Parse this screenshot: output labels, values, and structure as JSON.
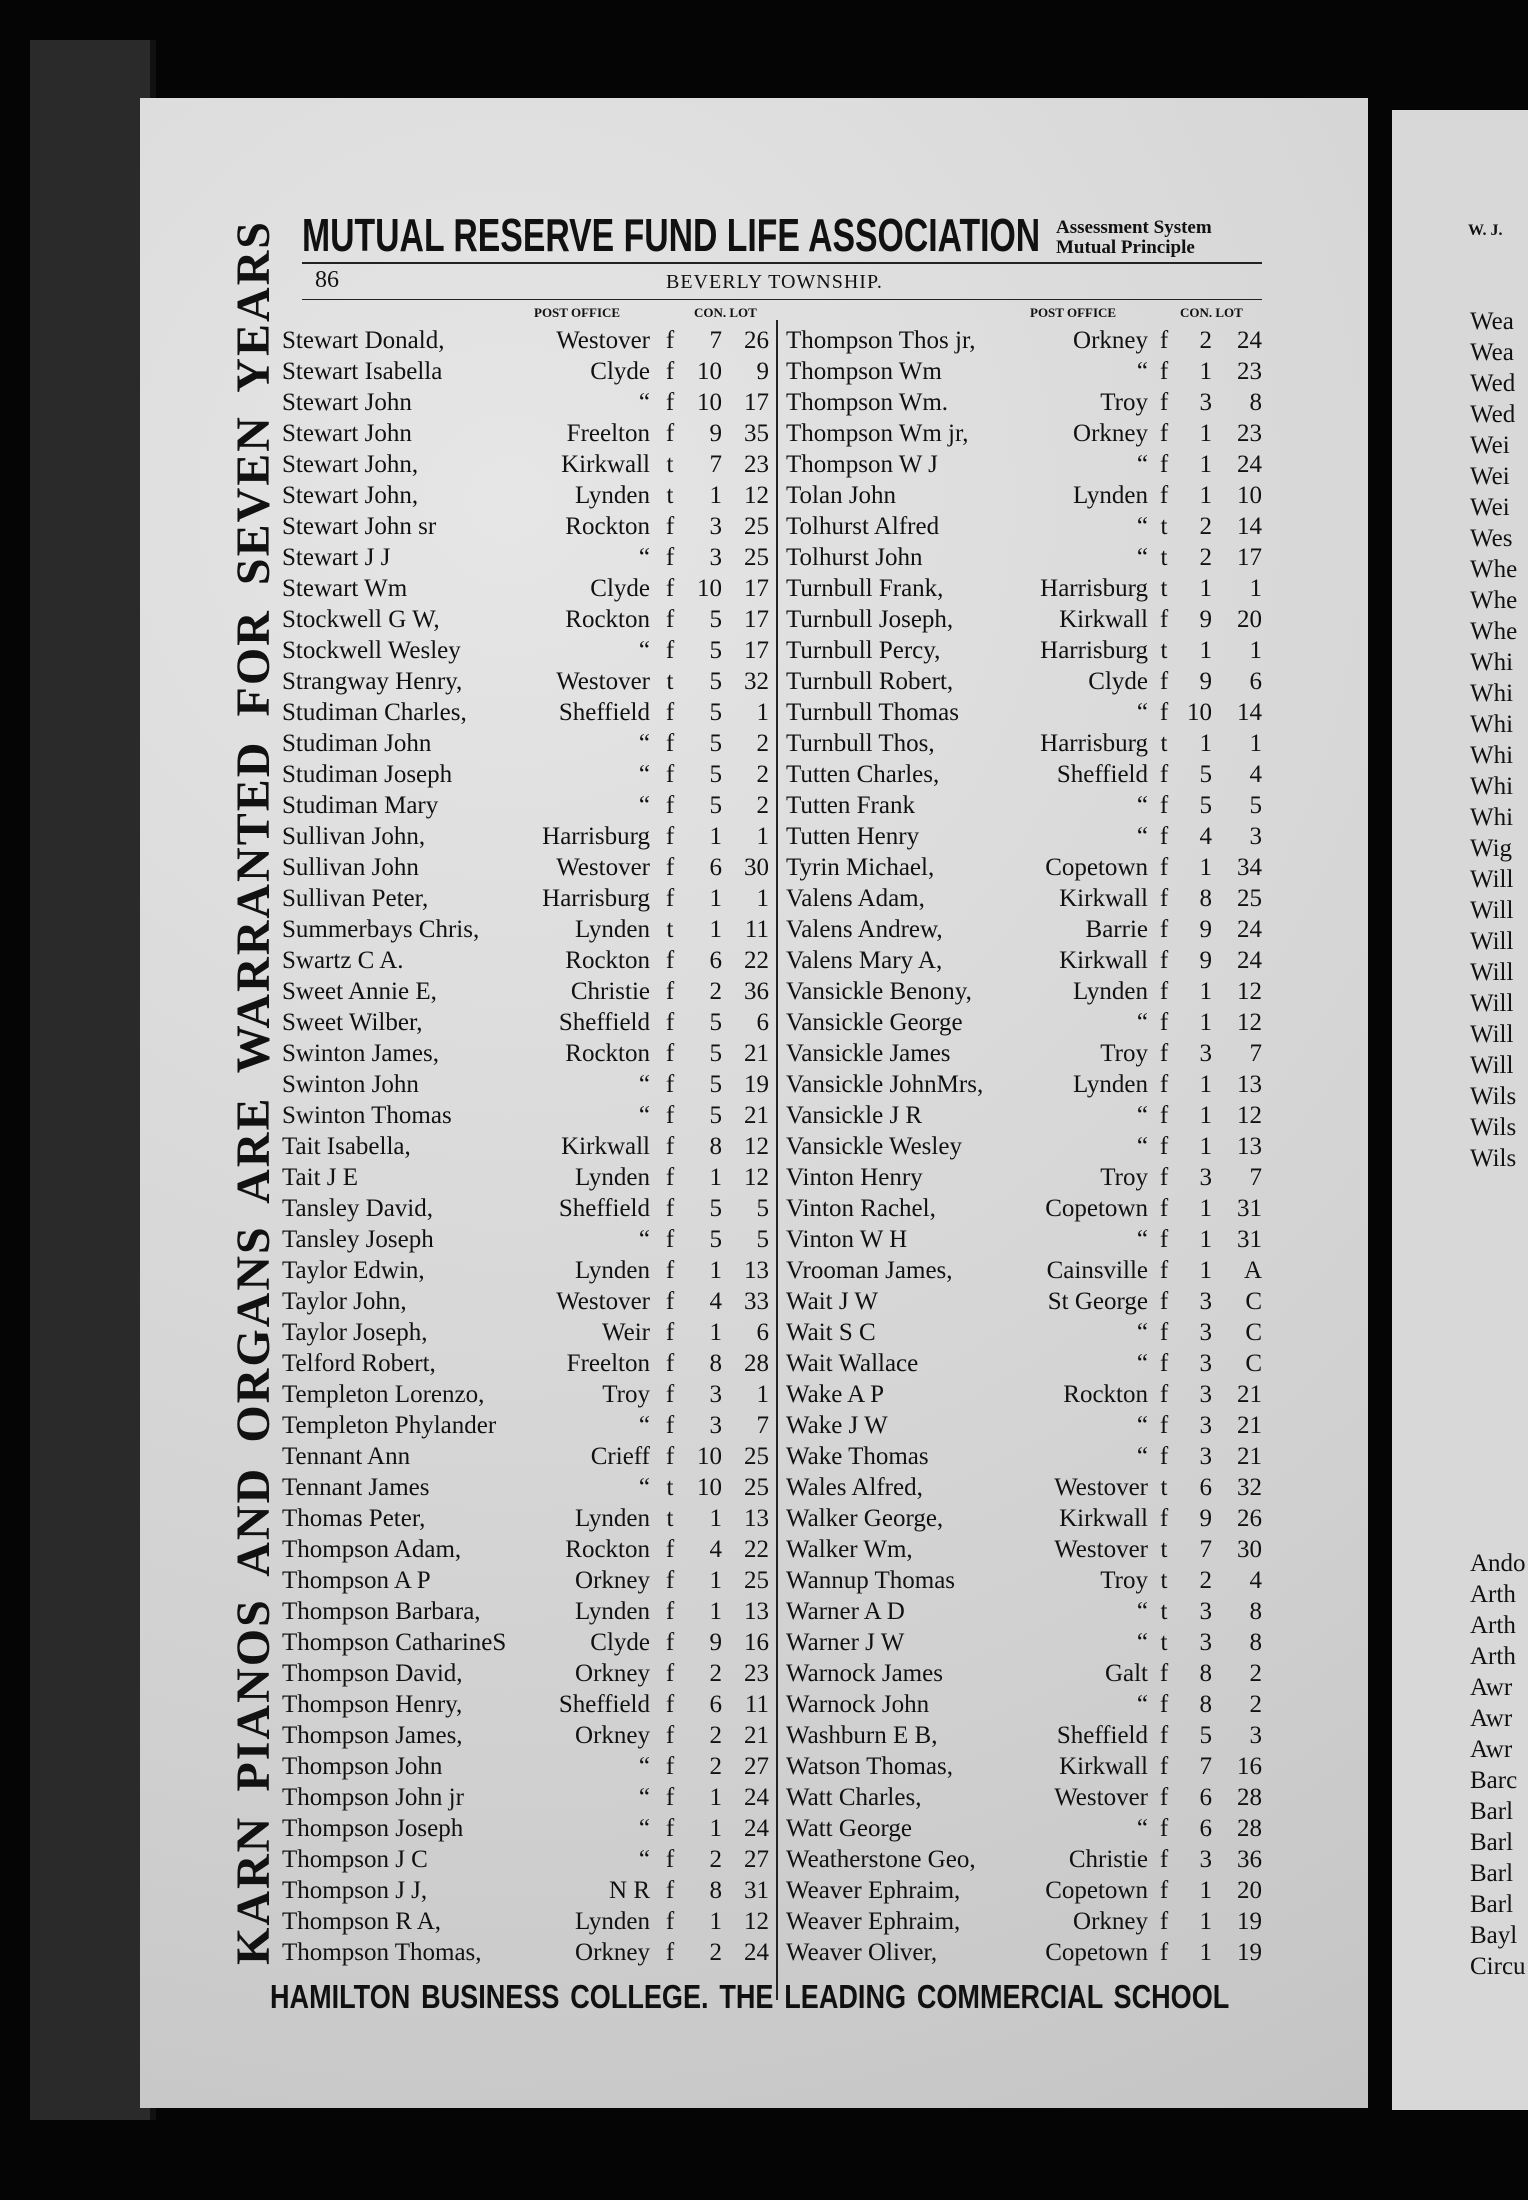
{
  "side_advertisement": "KARN PIANOS AND ORGANS ARE WARRANTED FOR SEVEN YEARS",
  "header": {
    "title": "MUTUAL RESERVE FUND LIFE ASSOCIATION",
    "subtitle_line1": "Assessment System",
    "subtitle_line2": "Mutual Principle",
    "page_number": "86",
    "section": "BEVERLY TOWNSHIP."
  },
  "column_headers": {
    "post_office": "POST OFFICE",
    "con_lot": "CON. LOT"
  },
  "left_column": [
    {
      "name": "Stewart Donald,",
      "po": "Westover",
      "s": "f",
      "con": "7",
      "lot": "26"
    },
    {
      "name": "Stewart Isabella",
      "po": "Clyde",
      "s": "f",
      "con": "10",
      "lot": "9"
    },
    {
      "name": "Stewart John",
      "po": "“",
      "s": "f",
      "con": "10",
      "lot": "17"
    },
    {
      "name": "Stewart John",
      "po": "Freelton",
      "s": "f",
      "con": "9",
      "lot": "35"
    },
    {
      "name": "Stewart John,",
      "po": "Kirkwall",
      "s": "t",
      "con": "7",
      "lot": "23"
    },
    {
      "name": "Stewart John,",
      "po": "Lynden",
      "s": "t",
      "con": "1",
      "lot": "12"
    },
    {
      "name": "Stewart John sr",
      "po": "Rockton",
      "s": "f",
      "con": "3",
      "lot": "25"
    },
    {
      "name": "Stewart J J",
      "po": "“",
      "s": "f",
      "con": "3",
      "lot": "25"
    },
    {
      "name": "Stewart Wm",
      "po": "Clyde",
      "s": "f",
      "con": "10",
      "lot": "17"
    },
    {
      "name": "Stockwell G W,",
      "po": "Rockton",
      "s": "f",
      "con": "5",
      "lot": "17"
    },
    {
      "name": "Stockwell Wesley",
      "po": "“",
      "s": "f",
      "con": "5",
      "lot": "17"
    },
    {
      "name": "Strangway Henry,",
      "po": "Westover",
      "s": "t",
      "con": "5",
      "lot": "32"
    },
    {
      "name": "Studiman Charles,",
      "po": "Sheffield",
      "s": "f",
      "con": "5",
      "lot": "1"
    },
    {
      "name": "Studiman John",
      "po": "“",
      "s": "f",
      "con": "5",
      "lot": "2"
    },
    {
      "name": "Studiman Joseph",
      "po": "“",
      "s": "f",
      "con": "5",
      "lot": "2"
    },
    {
      "name": "Studiman Mary",
      "po": "“",
      "s": "f",
      "con": "5",
      "lot": "2"
    },
    {
      "name": "Sullivan John,",
      "po": "Harrisburg",
      "s": "f",
      "con": "1",
      "lot": "1"
    },
    {
      "name": "Sullivan John",
      "po": "Westover",
      "s": "f",
      "con": "6",
      "lot": "30"
    },
    {
      "name": "Sullivan Peter,",
      "po": "Harrisburg",
      "s": "f",
      "con": "1",
      "lot": "1"
    },
    {
      "name": "Summerbays Chris,",
      "po": "Lynden",
      "s": "t",
      "con": "1",
      "lot": "11"
    },
    {
      "name": "Swartz C A.",
      "po": "Rockton",
      "s": "f",
      "con": "6",
      "lot": "22"
    },
    {
      "name": "Sweet Annie E,",
      "po": "Christie",
      "s": "f",
      "con": "2",
      "lot": "36"
    },
    {
      "name": "Sweet Wilber,",
      "po": "Sheffield",
      "s": "f",
      "con": "5",
      "lot": "6"
    },
    {
      "name": "Swinton James,",
      "po": "Rockton",
      "s": "f",
      "con": "5",
      "lot": "21"
    },
    {
      "name": "Swinton John",
      "po": "“",
      "s": "f",
      "con": "5",
      "lot": "19"
    },
    {
      "name": "Swinton Thomas",
      "po": "“",
      "s": "f",
      "con": "5",
      "lot": "21"
    },
    {
      "name": "Tait Isabella,",
      "po": "Kirkwall",
      "s": "f",
      "con": "8",
      "lot": "12"
    },
    {
      "name": "Tait J E",
      "po": "Lynden",
      "s": "f",
      "con": "1",
      "lot": "12"
    },
    {
      "name": "Tansley David,",
      "po": "Sheffield",
      "s": "f",
      "con": "5",
      "lot": "5"
    },
    {
      "name": "Tansley Joseph",
      "po": "“",
      "s": "f",
      "con": "5",
      "lot": "5"
    },
    {
      "name": "Taylor Edwin,",
      "po": "Lynden",
      "s": "f",
      "con": "1",
      "lot": "13"
    },
    {
      "name": "Taylor John,",
      "po": "Westover",
      "s": "f",
      "con": "4",
      "lot": "33"
    },
    {
      "name": "Taylor Joseph,",
      "po": "Weir",
      "s": "f",
      "con": "1",
      "lot": "6"
    },
    {
      "name": "Telford Robert,",
      "po": "Freelton",
      "s": "f",
      "con": "8",
      "lot": "28"
    },
    {
      "name": "Templeton Lorenzo,",
      "po": "Troy",
      "s": "f",
      "con": "3",
      "lot": "1"
    },
    {
      "name": "Templeton Phylander",
      "po": "“",
      "s": "f",
      "con": "3",
      "lot": "7"
    },
    {
      "name": "Tennant Ann",
      "po": "Crieff",
      "s": "f",
      "con": "10",
      "lot": "25"
    },
    {
      "name": "Tennant James",
      "po": "“",
      "s": "t",
      "con": "10",
      "lot": "25"
    },
    {
      "name": "Thomas Peter,",
      "po": "Lynden",
      "s": "t",
      "con": "1",
      "lot": "13"
    },
    {
      "name": "Thompson Adam,",
      "po": "Rockton",
      "s": "f",
      "con": "4",
      "lot": "22"
    },
    {
      "name": "Thompson A P",
      "po": "Orkney",
      "s": "f",
      "con": "1",
      "lot": "25"
    },
    {
      "name": "Thompson Barbara,",
      "po": "Lynden",
      "s": "f",
      "con": "1",
      "lot": "13"
    },
    {
      "name": "Thompson CatharineS",
      "po": "Clyde",
      "s": "f",
      "con": "9",
      "lot": "16"
    },
    {
      "name": "Thompson David,",
      "po": "Orkney",
      "s": "f",
      "con": "2",
      "lot": "23"
    },
    {
      "name": "Thompson Henry,",
      "po": "Sheffield",
      "s": "f",
      "con": "6",
      "lot": "11"
    },
    {
      "name": "Thompson James,",
      "po": "Orkney",
      "s": "f",
      "con": "2",
      "lot": "21"
    },
    {
      "name": "Thompson John",
      "po": "“",
      "s": "f",
      "con": "2",
      "lot": "27"
    },
    {
      "name": "Thompson John jr",
      "po": "“",
      "s": "f",
      "con": "1",
      "lot": "24"
    },
    {
      "name": "Thompson Joseph",
      "po": "“",
      "s": "f",
      "con": "1",
      "lot": "24"
    },
    {
      "name": "Thompson J C",
      "po": "“",
      "s": "f",
      "con": "2",
      "lot": "27"
    },
    {
      "name": "Thompson J J,",
      "po": "N R",
      "s": "f",
      "con": "8",
      "lot": "31"
    },
    {
      "name": "Thompson R A,",
      "po": "Lynden",
      "s": "f",
      "con": "1",
      "lot": "12"
    },
    {
      "name": "Thompson Thomas,",
      "po": "Orkney",
      "s": "f",
      "con": "2",
      "lot": "24"
    }
  ],
  "right_column": [
    {
      "name": "Thompson Thos jr,",
      "po": "Orkney",
      "s": "f",
      "con": "2",
      "lot": "24"
    },
    {
      "name": "Thompson Wm",
      "po": "“",
      "s": "f",
      "con": "1",
      "lot": "23"
    },
    {
      "name": "Thompson Wm.",
      "po": "Troy",
      "s": "f",
      "con": "3",
      "lot": "8"
    },
    {
      "name": "Thompson Wm jr,",
      "po": "Orkney",
      "s": "f",
      "con": "1",
      "lot": "23"
    },
    {
      "name": "Thompson W J",
      "po": "“",
      "s": "f",
      "con": "1",
      "lot": "24"
    },
    {
      "name": "Tolan John",
      "po": "Lynden",
      "s": "f",
      "con": "1",
      "lot": "10"
    },
    {
      "name": "Tolhurst Alfred",
      "po": "“",
      "s": "t",
      "con": "2",
      "lot": "14"
    },
    {
      "name": "Tolhurst John",
      "po": "“",
      "s": "t",
      "con": "2",
      "lot": "17"
    },
    {
      "name": "Turnbull Frank,",
      "po": "Harrisburg",
      "s": "t",
      "con": "1",
      "lot": "1"
    },
    {
      "name": "Turnbull Joseph,",
      "po": "Kirkwall",
      "s": "f",
      "con": "9",
      "lot": "20"
    },
    {
      "name": "Turnbull Percy,",
      "po": "Harrisburg",
      "s": "t",
      "con": "1",
      "lot": "1"
    },
    {
      "name": "Turnbull Robert,",
      "po": "Clyde",
      "s": "f",
      "con": "9",
      "lot": "6"
    },
    {
      "name": "Turnbull Thomas",
      "po": "“",
      "s": "f",
      "con": "10",
      "lot": "14"
    },
    {
      "name": "Turnbull Thos,",
      "po": "Harrisburg",
      "s": "t",
      "con": "1",
      "lot": "1"
    },
    {
      "name": "Tutten Charles,",
      "po": "Sheffield",
      "s": "f",
      "con": "5",
      "lot": "4"
    },
    {
      "name": "Tutten Frank",
      "po": "“",
      "s": "f",
      "con": "5",
      "lot": "5"
    },
    {
      "name": "Tutten Henry",
      "po": "“",
      "s": "f",
      "con": "4",
      "lot": "3"
    },
    {
      "name": "Tyrin Michael,",
      "po": "Copetown",
      "s": "f",
      "con": "1",
      "lot": "34"
    },
    {
      "name": "Valens Adam,",
      "po": "Kirkwall",
      "s": "f",
      "con": "8",
      "lot": "25"
    },
    {
      "name": "Valens Andrew,",
      "po": "Barrie",
      "s": "f",
      "con": "9",
      "lot": "24"
    },
    {
      "name": "Valens Mary A,",
      "po": "Kirkwall",
      "s": "f",
      "con": "9",
      "lot": "24"
    },
    {
      "name": "Vansickle Benony,",
      "po": "Lynden",
      "s": "f",
      "con": "1",
      "lot": "12"
    },
    {
      "name": "Vansickle George",
      "po": "“",
      "s": "f",
      "con": "1",
      "lot": "12"
    },
    {
      "name": "Vansickle James",
      "po": "Troy",
      "s": "f",
      "con": "3",
      "lot": "7"
    },
    {
      "name": "Vansickle JohnMrs,",
      "po": "Lynden",
      "s": "f",
      "con": "1",
      "lot": "13"
    },
    {
      "name": "Vansickle J R",
      "po": "“",
      "s": "f",
      "con": "1",
      "lot": "12"
    },
    {
      "name": "Vansickle Wesley",
      "po": "“",
      "s": "f",
      "con": "1",
      "lot": "13"
    },
    {
      "name": "Vinton Henry",
      "po": "Troy",
      "s": "f",
      "con": "3",
      "lot": "7"
    },
    {
      "name": "Vinton Rachel,",
      "po": "Copetown",
      "s": "f",
      "con": "1",
      "lot": "31"
    },
    {
      "name": "Vinton W H",
      "po": "“",
      "s": "f",
      "con": "1",
      "lot": "31"
    },
    {
      "name": "Vrooman James,",
      "po": "Cainsville",
      "s": "f",
      "con": "1",
      "lot": "A"
    },
    {
      "name": "Wait J W",
      "po": "St George",
      "s": "f",
      "con": "3",
      "lot": "C"
    },
    {
      "name": "Wait S C",
      "po": "“",
      "s": "f",
      "con": "3",
      "lot": "C"
    },
    {
      "name": "Wait Wallace",
      "po": "“",
      "s": "f",
      "con": "3",
      "lot": "C"
    },
    {
      "name": "Wake A P",
      "po": "Rockton",
      "s": "f",
      "con": "3",
      "lot": "21"
    },
    {
      "name": "Wake J W",
      "po": "“",
      "s": "f",
      "con": "3",
      "lot": "21"
    },
    {
      "name": "Wake Thomas",
      "po": "“",
      "s": "f",
      "con": "3",
      "lot": "21"
    },
    {
      "name": "Wales Alfred,",
      "po": "Westover",
      "s": "t",
      "con": "6",
      "lot": "32"
    },
    {
      "name": "Walker George,",
      "po": "Kirkwall",
      "s": "f",
      "con": "9",
      "lot": "26"
    },
    {
      "name": "Walker Wm,",
      "po": "Westover",
      "s": "t",
      "con": "7",
      "lot": "30"
    },
    {
      "name": "Wannup Thomas",
      "po": "Troy",
      "s": "t",
      "con": "2",
      "lot": "4"
    },
    {
      "name": "Warner A D",
      "po": "“",
      "s": "t",
      "con": "3",
      "lot": "8"
    },
    {
      "name": "Warner J W",
      "po": "“",
      "s": "t",
      "con": "3",
      "lot": "8"
    },
    {
      "name": "Warnock James",
      "po": "Galt",
      "s": "f",
      "con": "8",
      "lot": "2"
    },
    {
      "name": "Warnock John",
      "po": "“",
      "s": "f",
      "con": "8",
      "lot": "2"
    },
    {
      "name": "Washburn E B,",
      "po": "Sheffield",
      "s": "f",
      "con": "5",
      "lot": "3"
    },
    {
      "name": "Watson Thomas,",
      "po": "Kirkwall",
      "s": "f",
      "con": "7",
      "lot": "16"
    },
    {
      "name": "Watt Charles,",
      "po": "Westover",
      "s": "f",
      "con": "6",
      "lot": "28"
    },
    {
      "name": "Watt George",
      "po": "“",
      "s": "f",
      "con": "6",
      "lot": "28"
    },
    {
      "name": "Weatherstone Geo,",
      "po": "Christie",
      "s": "f",
      "con": "3",
      "lot": "36"
    },
    {
      "name": "Weaver Ephraim,",
      "po": "Copetown",
      "s": "f",
      "con": "1",
      "lot": "20"
    },
    {
      "name": "Weaver Ephraim,",
      "po": "Orkney",
      "s": "f",
      "con": "1",
      "lot": "19"
    },
    {
      "name": "Weaver Oliver,",
      "po": "Copetown",
      "s": "f",
      "con": "1",
      "lot": "19"
    }
  ],
  "footer": "HAMILTON BUSINESS COLLEGE.   THE LEADING COMMERCIAL SCHOOL",
  "next_page": {
    "header": "W. J.",
    "fragments_top": [
      "Wea",
      "Wea",
      "Wed",
      "Wed",
      "Wei",
      "Wei",
      "Wei",
      "Wes",
      "Whe",
      "Whe",
      "Whe",
      "Whi",
      "Whi",
      "Whi",
      "Whi",
      "Whi",
      "Whi",
      "Wig",
      "Will",
      "Will",
      "Will",
      "Will",
      "Will",
      "Will",
      "Will",
      "Wils",
      "Wils",
      "Wils"
    ],
    "fragments_bottom": [
      "Ando",
      "Arth",
      "Arth",
      "Arth",
      "Awr",
      "Awr",
      "Awr",
      "Barc",
      "Barl",
      "Barl",
      "Barl",
      "Barl",
      "Bayl",
      "Circu"
    ]
  }
}
